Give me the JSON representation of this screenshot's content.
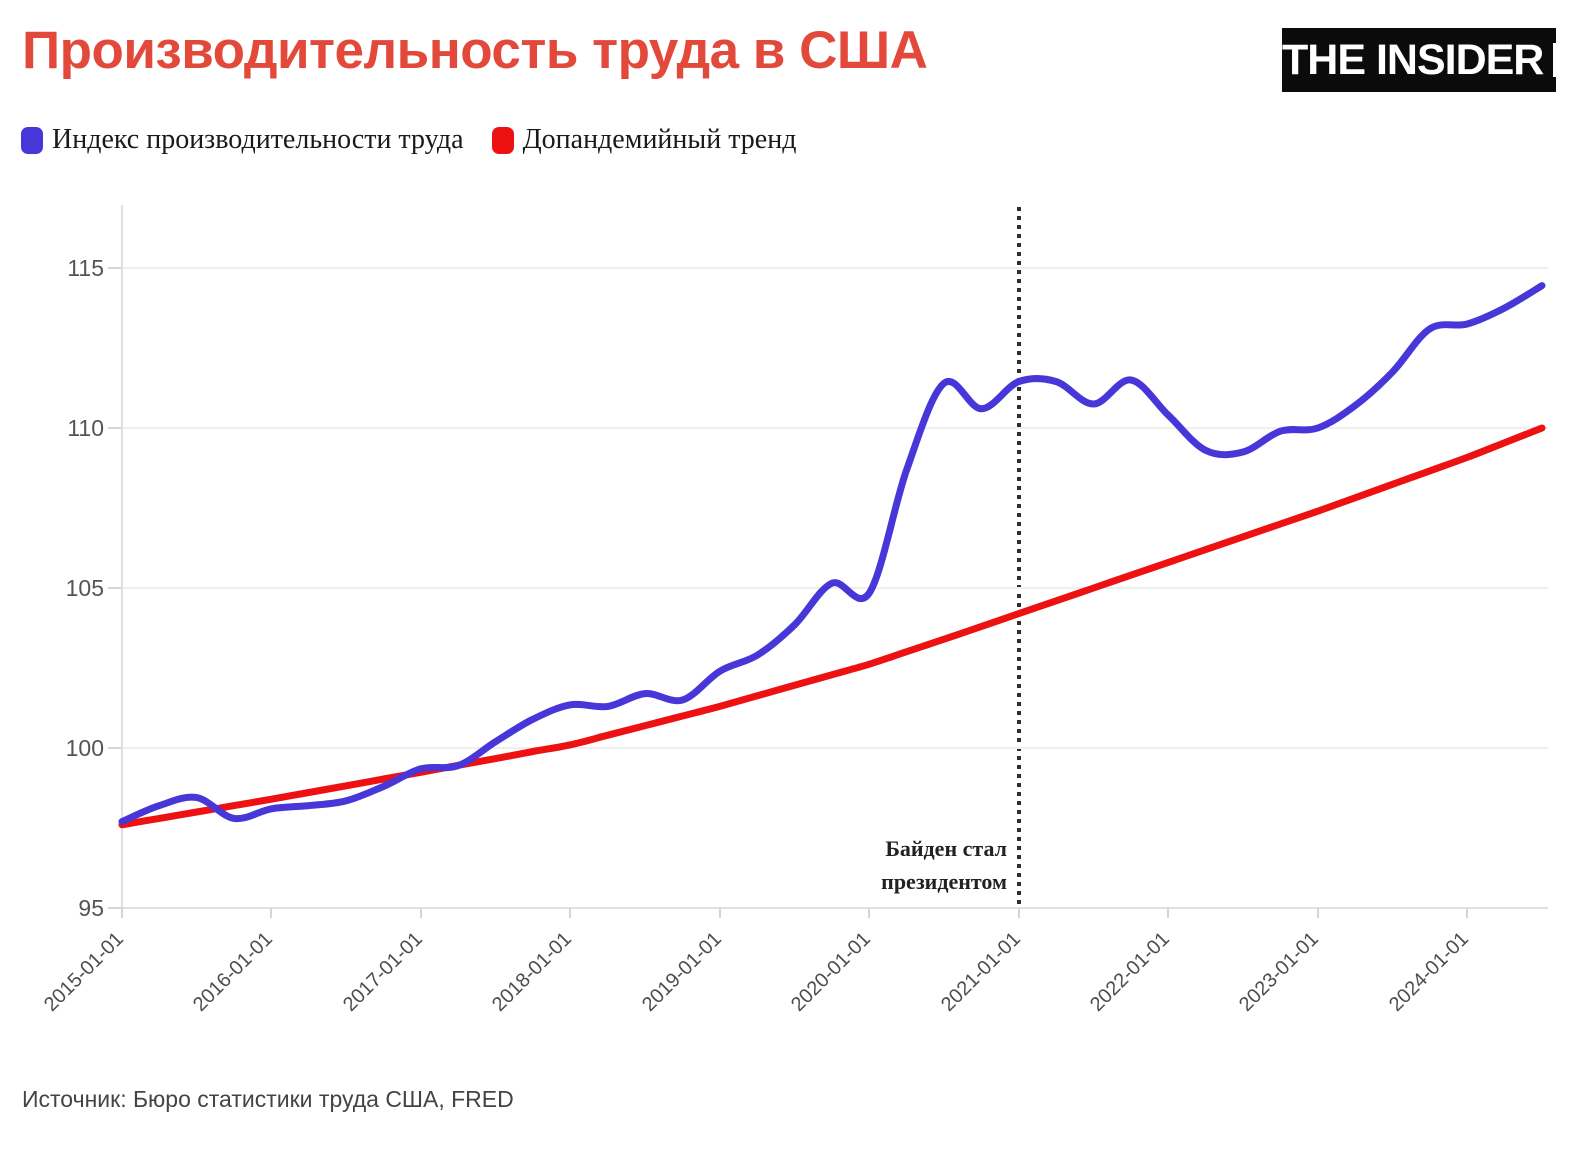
{
  "header": {
    "title": "Производительность труда в США",
    "title_color": "#e2493b",
    "logo_text": "THE INSIDER"
  },
  "legend": {
    "items": [
      {
        "label": "Индекс производительности труда",
        "color": "#4737d9"
      },
      {
        "label": "Допандемийный тренд",
        "color": "#ee1111"
      }
    ]
  },
  "annotation": {
    "line1": "Байден стал",
    "line2": "президентом"
  },
  "footer": {
    "source": "Источник: Бюро статистики труда США, FRED"
  },
  "chart_data": {
    "type": "line",
    "title": "Производительность труда в США",
    "xlabel": "",
    "ylabel": "",
    "grid": "horizontal",
    "legend_position": "top-left",
    "y_ticks": [
      95,
      100,
      105,
      110,
      115
    ],
    "ylim": [
      95,
      117.2
    ],
    "x_tick_labels": [
      "2015-01-01",
      "2016-01-01",
      "2017-01-01",
      "2018-01-01",
      "2019-01-01",
      "2020-01-01",
      "2021-01-01",
      "2022-01-01",
      "2023-01-01",
      "2024-01-01"
    ],
    "x": [
      "2015-01-01",
      "2015-04-01",
      "2015-07-01",
      "2015-10-01",
      "2016-01-01",
      "2016-04-01",
      "2016-07-01",
      "2016-10-01",
      "2017-01-01",
      "2017-04-01",
      "2017-07-01",
      "2017-10-01",
      "2018-01-01",
      "2018-04-01",
      "2018-07-01",
      "2018-10-01",
      "2019-01-01",
      "2019-04-01",
      "2019-07-01",
      "2019-10-01",
      "2020-01-01",
      "2020-04-01",
      "2020-07-01",
      "2020-10-01",
      "2021-01-01",
      "2021-04-01",
      "2021-07-01",
      "2021-10-01",
      "2022-01-01",
      "2022-04-01",
      "2022-07-01",
      "2022-10-01",
      "2023-01-01",
      "2023-04-01",
      "2023-07-01",
      "2023-10-01",
      "2024-01-01",
      "2024-04-01",
      "2024-07-01"
    ],
    "series": [
      {
        "name": "Индекс производительности труда",
        "slug": "productivity-line",
        "color": "#4737d9",
        "values": [
          97.7,
          98.2,
          98.45,
          97.8,
          98.1,
          98.2,
          98.35,
          98.8,
          99.35,
          99.45,
          100.2,
          100.9,
          101.35,
          101.3,
          101.7,
          101.5,
          102.4,
          102.9,
          103.85,
          105.15,
          104.85,
          108.7,
          111.4,
          110.6,
          111.45,
          111.45,
          110.75,
          111.5,
          110.4,
          109.3,
          109.25,
          109.9,
          110.0,
          110.7,
          111.75,
          113.1,
          113.25,
          113.75,
          114.45
        ]
      },
      {
        "name": "Допандемийный тренд",
        "slug": "trend-line",
        "color": "#ee1111",
        "values": [
          97.6,
          97.8,
          98.0,
          98.2,
          98.4,
          98.61,
          98.82,
          99.03,
          99.24,
          99.46,
          99.67,
          99.89,
          100.1,
          100.4,
          100.7,
          101.0,
          101.3,
          101.63,
          101.96,
          102.29,
          102.62,
          103.01,
          103.4,
          103.8,
          104.2,
          104.6,
          105.0,
          105.4,
          105.8,
          106.2,
          106.6,
          107.0,
          107.4,
          107.82,
          108.24,
          108.66,
          109.08,
          109.54,
          110.0
        ]
      }
    ],
    "vline": {
      "x": "2021-01-01",
      "label": "Байден стал президентом",
      "style": "dotted",
      "color": "#2e2e2e"
    }
  }
}
